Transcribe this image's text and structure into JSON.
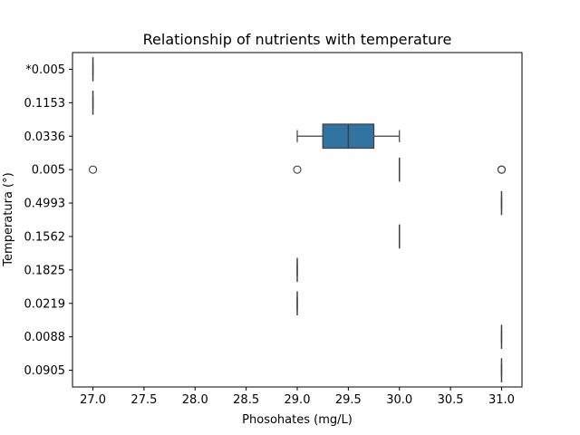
{
  "chart_data": {
    "type": "box",
    "orientation": "horizontal",
    "title": "Relationship of nutrients with temperature",
    "xlabel": "Phosohates (mg/L)",
    "ylabel": "Temperatura (°)",
    "xlim": [
      26.8,
      31.2
    ],
    "xticks": [
      "27.0",
      "27.5",
      "28.0",
      "28.5",
      "29.0",
      "29.5",
      "30.0",
      "30.5",
      "31.0"
    ],
    "categories": [
      "*0.005",
      "0.1153",
      "0.0336",
      "0.005",
      "0.4993",
      "0.1562",
      "0.1825",
      "0.0219",
      "0.0088",
      "0.0905"
    ],
    "boxes": [
      {
        "category": "*0.005",
        "whislo": 27.0,
        "q1": 27.0,
        "med": 27.0,
        "q3": 27.0,
        "whishi": 27.0,
        "fliers": []
      },
      {
        "category": "0.1153",
        "whislo": 27.0,
        "q1": 27.0,
        "med": 27.0,
        "q3": 27.0,
        "whishi": 27.0,
        "fliers": []
      },
      {
        "category": "0.0336",
        "whislo": 29.0,
        "q1": 29.25,
        "med": 29.5,
        "q3": 29.75,
        "whishi": 30.0,
        "fliers": []
      },
      {
        "category": "0.005",
        "whislo": 30.0,
        "q1": 30.0,
        "med": 30.0,
        "q3": 30.0,
        "whishi": 30.0,
        "fliers": [
          27.0,
          29.0,
          31.0,
          31.0
        ]
      },
      {
        "category": "0.4993",
        "whislo": 31.0,
        "q1": 31.0,
        "med": 31.0,
        "q3": 31.0,
        "whishi": 31.0,
        "fliers": []
      },
      {
        "category": "0.1562",
        "whislo": 30.0,
        "q1": 30.0,
        "med": 30.0,
        "q3": 30.0,
        "whishi": 30.0,
        "fliers": []
      },
      {
        "category": "0.1825",
        "whislo": 29.0,
        "q1": 29.0,
        "med": 29.0,
        "q3": 29.0,
        "whishi": 29.0,
        "fliers": []
      },
      {
        "category": "0.0219",
        "whislo": 29.0,
        "q1": 29.0,
        "med": 29.0,
        "q3": 29.0,
        "whishi": 29.0,
        "fliers": []
      },
      {
        "category": "0.0088",
        "whislo": 31.0,
        "q1": 31.0,
        "med": 31.0,
        "q3": 31.0,
        "whishi": 31.0,
        "fliers": []
      },
      {
        "category": "0.0905",
        "whislo": 31.0,
        "q1": 31.0,
        "med": 31.0,
        "q3": 31.0,
        "whishi": 31.0,
        "fliers": []
      }
    ],
    "box_color": "#3274a1",
    "line_color": "#3f3f3f",
    "grid": false,
    "legend": "none"
  }
}
